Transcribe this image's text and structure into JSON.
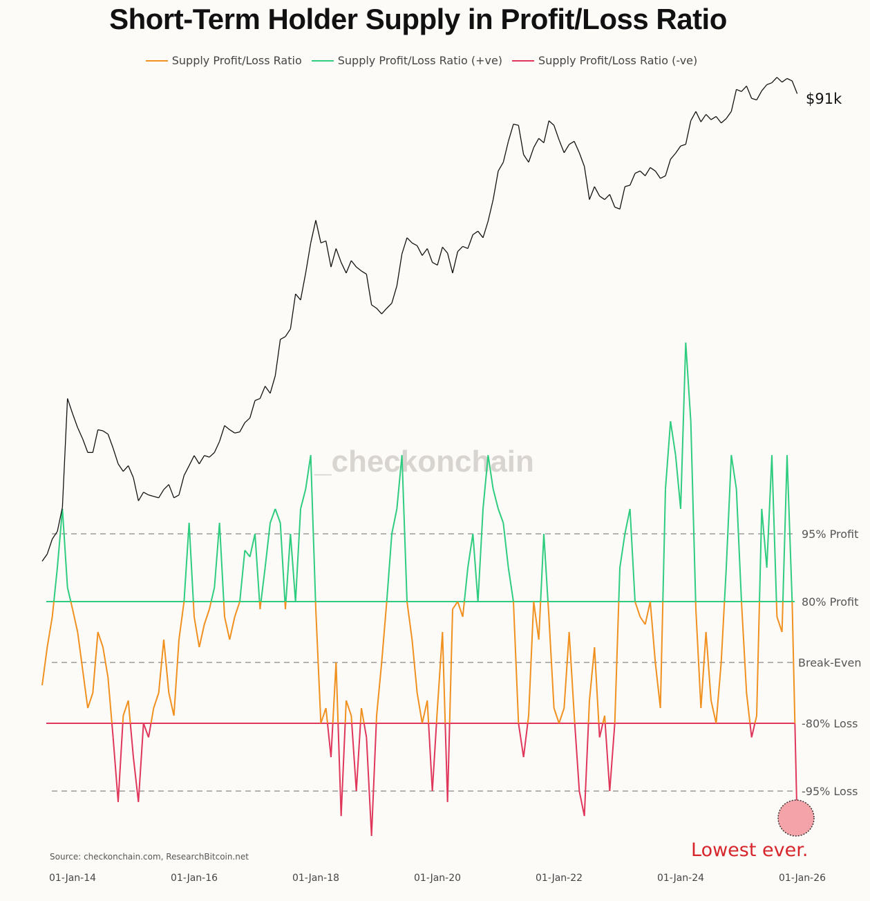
{
  "title": "Short-Term Holder Supply in Profit/Loss Ratio",
  "legend": [
    {
      "label": "Supply Profit/Loss Ratio",
      "color": "#f0901e"
    },
    {
      "label": "Supply Profit/Loss Ratio (+ve)",
      "color": "#2ecc7f"
    },
    {
      "label": "Supply Profit/Loss Ratio (-ve)",
      "color": "#e0365a"
    }
  ],
  "watermark": "_checkonchain",
  "source": "Source: checkonchain.com, ResearchBitcoin.net",
  "annotations": {
    "price_label": "$91k",
    "lowest": "Lowest ever."
  },
  "chart_data": {
    "type": "line",
    "title": "Short-Term Holder Supply in Profit/Loss Ratio",
    "x_ticks": [
      "01-Jan-14",
      "01-Jan-16",
      "01-Jan-18",
      "01-Jan-20",
      "01-Jan-22",
      "01-Jan-24",
      "01-Jan-26"
    ],
    "x_tick_dates": [
      "2014-01",
      "2016-01",
      "2018-01",
      "2020-01",
      "2022-01",
      "2024-01",
      "2026-01"
    ],
    "ratio_levels": [
      {
        "label": "95% Profit",
        "value": 95,
        "style": "dashed"
      },
      {
        "label": "80% Profit",
        "value": 80,
        "style": "solid",
        "color": "#2ecc7f"
      },
      {
        "label": "Break-Even",
        "value": 0,
        "style": "dashed"
      },
      {
        "label": "-80% Loss",
        "value": -80,
        "style": "solid",
        "color": "#e0365a"
      },
      {
        "label": "-95% Loss",
        "value": -95,
        "style": "dashed"
      }
    ],
    "price_scale": "log",
    "price_color": "#111111",
    "start": "2013-07",
    "price_usd": [
      90,
      100,
      125,
      140,
      200,
      1000,
      800,
      650,
      550,
      450,
      450,
      630,
      620,
      590,
      480,
      380,
      340,
      370,
      310,
      220,
      250,
      240,
      235,
      230,
      260,
      280,
      230,
      240,
      320,
      370,
      430,
      380,
      430,
      420,
      450,
      530,
      670,
      630,
      600,
      610,
      700,
      750,
      970,
      1000,
      1200,
      1080,
      1400,
      2400,
      2500,
      2800,
      4700,
      4300,
      6400,
      10000,
      14000,
      10000,
      10300,
      7000,
      9200,
      7500,
      6400,
      7700,
      7000,
      6600,
      6300,
      4000,
      3800,
      3500,
      3800,
      4100,
      5300,
      8500,
      10800,
      10000,
      9600,
      8300,
      9200,
      7500,
      7200,
      9400,
      8600,
      6400,
      8800,
      9500,
      9200,
      11300,
      11900,
      10800,
      13800,
      19000,
      29000,
      33000,
      45000,
      58000,
      57000,
      37000,
      33000,
      41000,
      47000,
      44000,
      61000,
      57000,
      46000,
      38000,
      43000,
      45000,
      38000,
      31000,
      19000,
      23000,
      20000,
      19000,
      20500,
      17000,
      16500,
      23000,
      23500,
      28000,
      29000,
      27000,
      30500,
      29000,
      26000,
      27000,
      34500,
      37700,
      42000,
      43000,
      61000,
      70000,
      60000,
      67000,
      62000,
      65000,
      59000,
      63000,
      70000,
      97000,
      94000,
      102000,
      85000,
      83000,
      95000,
      104000,
      107000,
      116000,
      108000,
      114000,
      110000,
      91000
    ],
    "ratio_pct": [
      -30,
      20,
      60,
      90,
      97,
      85,
      70,
      40,
      -10,
      -60,
      -40,
      40,
      20,
      -20,
      -85,
      -96,
      -70,
      -50,
      -90,
      -96,
      -80,
      -85,
      -60,
      -40,
      30,
      -40,
      -70,
      30,
      80,
      96,
      60,
      20,
      50,
      70,
      85,
      96,
      60,
      30,
      60,
      80,
      93,
      92,
      95,
      70,
      90,
      96,
      97,
      96,
      70,
      95,
      80,
      97,
      98,
      99,
      70,
      -80,
      -60,
      -90,
      0,
      -97,
      -50,
      -70,
      -95,
      -60,
      -85,
      -98,
      -70,
      0,
      80,
      95,
      97,
      99,
      80,
      30,
      -40,
      -80,
      -50,
      -95,
      -60,
      40,
      -96,
      70,
      80,
      60,
      90,
      95,
      80,
      97,
      99,
      98,
      97,
      96,
      90,
      80,
      -80,
      -90,
      -70,
      80,
      30,
      95,
      60,
      -60,
      -80,
      -60,
      40,
      -70,
      -95,
      -97,
      -50,
      20,
      -85,
      -70,
      -95,
      -80,
      90,
      95,
      97,
      80,
      60,
      50,
      80,
      0,
      -60,
      98,
      99.5,
      99,
      97,
      99.9,
      99.5,
      70,
      -60,
      40,
      -50,
      -80,
      0,
      90,
      99,
      98,
      80,
      -40,
      -85,
      -70,
      97,
      90,
      99,
      60,
      40,
      99,
      80,
      -97.5
    ]
  }
}
